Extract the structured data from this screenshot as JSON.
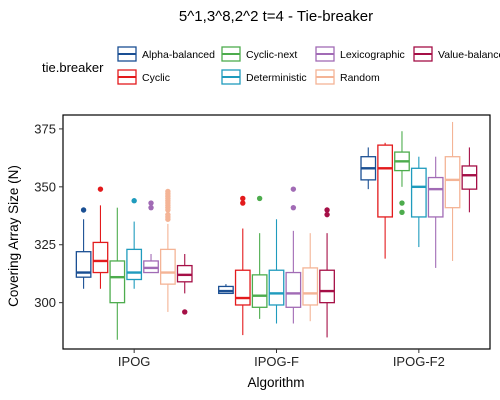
{
  "chart_data": {
    "type": "boxplot",
    "title": "5^1,3^8,2^2 t=4 - Tie-breaker",
    "xlabel": "Algorithm",
    "ylabel": "Covering Array Size (N)",
    "ylim": [
      280,
      381
    ],
    "yticks": [
      300,
      325,
      350,
      375
    ],
    "categories": [
      "IPOG",
      "IPOG-F",
      "IPOG-F2"
    ],
    "legend": {
      "title": "tie.breaker",
      "position": "top"
    },
    "grid": false,
    "series": [
      {
        "name": "Alpha-balanced",
        "color": "#1a4f93",
        "boxes": [
          {
            "category": "IPOG",
            "min": 306,
            "q1": 311,
            "median": 313,
            "q3": 322,
            "max": 336,
            "outliers": [
              340
            ]
          },
          {
            "category": "IPOG-F",
            "min": 304,
            "q1": 304,
            "median": 305,
            "q3": 307,
            "max": 308,
            "outliers": []
          },
          {
            "category": "IPOG-F2",
            "min": 349,
            "q1": 353,
            "median": 358,
            "q3": 363,
            "max": 367,
            "outliers": []
          }
        ]
      },
      {
        "name": "Cyclic",
        "color": "#e31a1c",
        "boxes": [
          {
            "category": "IPOG",
            "min": 306,
            "q1": 313,
            "median": 318,
            "q3": 326,
            "max": 342,
            "outliers": [
              349
            ]
          },
          {
            "category": "IPOG-F",
            "min": 286,
            "q1": 299,
            "median": 302,
            "q3": 314,
            "max": 332,
            "outliers": [
              343,
              345
            ]
          },
          {
            "category": "IPOG-F2",
            "min": 319,
            "q1": 337,
            "median": 358,
            "q3": 368,
            "max": 369,
            "outliers": []
          }
        ]
      },
      {
        "name": "Cyclic-next",
        "color": "#4dac4d",
        "boxes": [
          {
            "category": "IPOG",
            "min": 284,
            "q1": 300,
            "median": 311,
            "q3": 318,
            "max": 341,
            "outliers": []
          },
          {
            "category": "IPOG-F",
            "min": 293,
            "q1": 298,
            "median": 303,
            "q3": 312,
            "max": 330,
            "outliers": [
              345
            ]
          },
          {
            "category": "IPOG-F2",
            "min": 350,
            "q1": 357,
            "median": 361,
            "q3": 365,
            "max": 374,
            "outliers": [
              339,
              343
            ]
          }
        ]
      },
      {
        "name": "Deterministic",
        "color": "#1f9bbd",
        "boxes": [
          {
            "category": "IPOG",
            "min": 306,
            "q1": 310,
            "median": 313,
            "q3": 323,
            "max": 335,
            "outliers": [
              344
            ]
          },
          {
            "category": "IPOG-F",
            "min": 291,
            "q1": 299,
            "median": 304,
            "q3": 314,
            "max": 336,
            "outliers": []
          },
          {
            "category": "IPOG-F2",
            "min": 324,
            "q1": 337,
            "median": 350,
            "q3": 358,
            "max": 363,
            "outliers": []
          }
        ]
      },
      {
        "name": "Lexicographic",
        "color": "#a16bb5",
        "boxes": [
          {
            "category": "IPOG",
            "min": 313,
            "q1": 313,
            "median": 315,
            "q3": 318,
            "max": 321,
            "outliers": [
              341,
              343
            ]
          },
          {
            "category": "IPOG-F",
            "min": 291,
            "q1": 298,
            "median": 304,
            "q3": 313,
            "max": 331,
            "outliers": [
              341,
              349
            ]
          },
          {
            "category": "IPOG-F2",
            "min": 315,
            "q1": 337,
            "median": 349,
            "q3": 354,
            "max": 363,
            "outliers": []
          }
        ]
      },
      {
        "name": "Random",
        "color": "#f4b496",
        "boxes": [
          {
            "category": "IPOG",
            "min": 296,
            "q1": 308,
            "median": 313,
            "q3": 323,
            "max": 334,
            "outliers": [
              336,
              337,
              338,
              340,
              341,
              342,
              343,
              344,
              345,
              346,
              347,
              348
            ]
          },
          {
            "category": "IPOG-F",
            "min": 292,
            "q1": 299,
            "median": 304,
            "q3": 315,
            "max": 330,
            "outliers": []
          },
          {
            "category": "IPOG-F2",
            "min": 318,
            "q1": 341,
            "median": 353,
            "q3": 363,
            "max": 378,
            "outliers": []
          }
        ]
      },
      {
        "name": "Value-balanced",
        "color": "#a50f46",
        "boxes": [
          {
            "category": "IPOG",
            "min": 304,
            "q1": 309,
            "median": 312,
            "q3": 316,
            "max": 321,
            "outliers": [
              296
            ]
          },
          {
            "category": "IPOG-F",
            "min": 285,
            "q1": 300,
            "median": 305,
            "q3": 314,
            "max": 330,
            "outliers": [
              338,
              340
            ]
          },
          {
            "category": "IPOG-F2",
            "min": 339,
            "q1": 349,
            "median": 355,
            "q3": 359,
            "max": 367,
            "outliers": []
          }
        ]
      }
    ]
  }
}
